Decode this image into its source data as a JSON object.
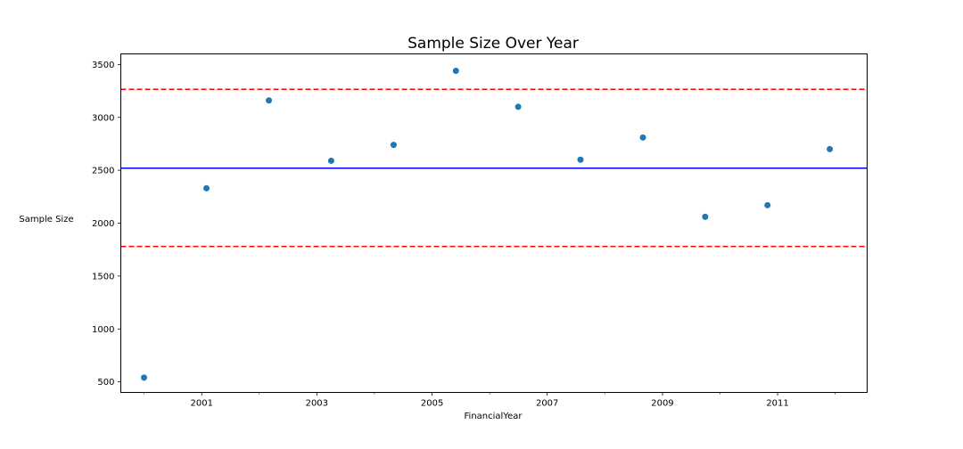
{
  "chart_data": {
    "type": "scatter",
    "title": "Sample Size Over Year",
    "xlabel": "FinancialYear",
    "ylabel": "Sample Size",
    "x": [
      "2000-01-01",
      "2001-01-31",
      "2002-03-03",
      "2003-04-02",
      "2004-05-02",
      "2005-06-01",
      "2006-07-01",
      "2007-07-31",
      "2008-08-30",
      "2009-09-29",
      "2010-10-29",
      "2011-11-28"
    ],
    "series": [
      {
        "values": [
          540,
          2330,
          3160,
          2590,
          2740,
          3440,
          3100,
          2600,
          2810,
          2060,
          2170,
          2700
        ]
      }
    ],
    "x_ticks": [
      "2001",
      "2003",
      "2005",
      "2007",
      "2009",
      "2011"
    ],
    "x_minor_ticks": [
      "2000",
      "2002",
      "2004",
      "2006",
      "2008",
      "2010",
      "2012"
    ],
    "y_ticks": [
      500,
      1000,
      1500,
      2000,
      2500,
      3000,
      3500
    ],
    "xlim": [
      "1999-08-07",
      "2012-07-22"
    ],
    "ylim": [
      400,
      3600
    ],
    "reference_lines": [
      {
        "kind": "mean",
        "value": 2520,
        "color": "#0000ff",
        "style": "solid"
      },
      {
        "kind": "upper",
        "value": 3265,
        "color": "#ff0000",
        "style": "dashed"
      },
      {
        "kind": "lower",
        "value": 1780,
        "color": "#ff0000",
        "style": "dashed"
      }
    ],
    "marker_color": "#1f77b4",
    "grid": false
  }
}
